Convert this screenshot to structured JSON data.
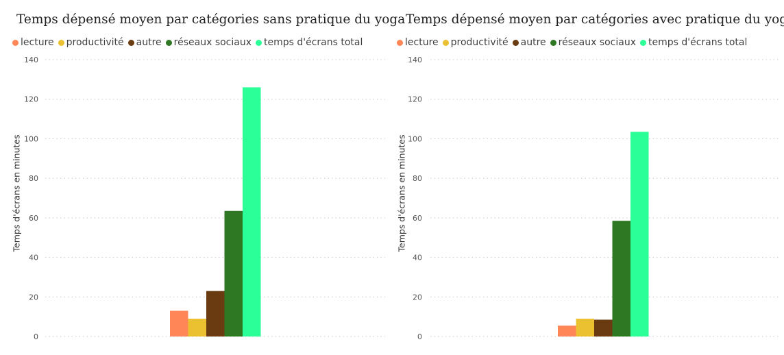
{
  "chart_data": [
    {
      "type": "bar",
      "title": "Temps dépensé moyen par catégories sans pratique du yoga",
      "ylabel": "Temps d'écrans en minutes",
      "xlabel": "",
      "ylim": [
        0,
        140
      ],
      "yticks": [
        0,
        20,
        40,
        60,
        80,
        100,
        120,
        140
      ],
      "grid": true,
      "legend_position": "top-left",
      "series": [
        {
          "name": "lecture",
          "color": "#FF8656",
          "value": 13
        },
        {
          "name": "productivité",
          "color": "#EBC131",
          "value": 9
        },
        {
          "name": "autre",
          "color": "#6A3B10",
          "value": 23
        },
        {
          "name": "réseaux sociaux",
          "color": "#2E7723",
          "value": 63.5
        },
        {
          "name": "temps d'écrans total",
          "color": "#2BFF97",
          "value": 126
        }
      ]
    },
    {
      "type": "bar",
      "title": "Temps dépensé moyen par catégories avec pratique du yoga",
      "ylabel": "Temps d'écrans en minutes",
      "xlabel": "",
      "ylim": [
        0,
        140
      ],
      "yticks": [
        0,
        20,
        40,
        60,
        80,
        100,
        120,
        140
      ],
      "grid": true,
      "legend_position": "top-left",
      "series": [
        {
          "name": "lecture",
          "color": "#FF8656",
          "value": 5.5
        },
        {
          "name": "productivité",
          "color": "#EBC131",
          "value": 9
        },
        {
          "name": "autre",
          "color": "#6A3B10",
          "value": 8.5
        },
        {
          "name": "réseaux sociaux",
          "color": "#2E7723",
          "value": 58.5
        },
        {
          "name": "temps d'écrans total",
          "color": "#2BFF97",
          "value": 103.5
        }
      ]
    }
  ]
}
